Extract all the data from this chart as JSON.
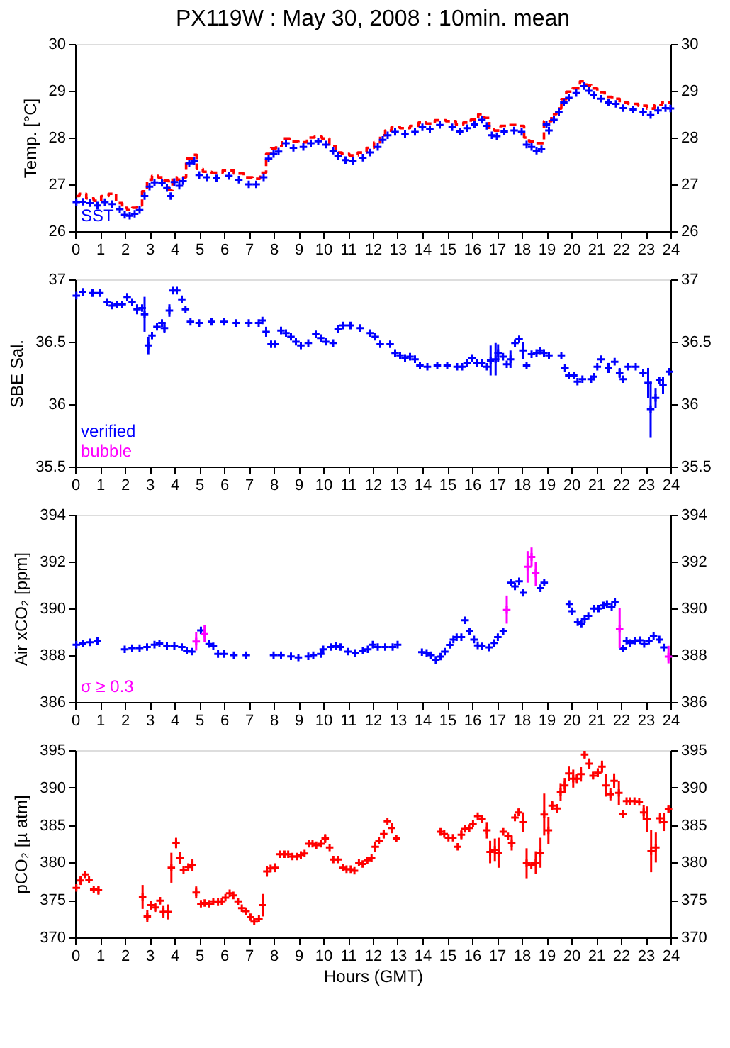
{
  "chart_data": [
    {
      "type": "scatter",
      "title": "PX119W : May 30, 2008 : 10min. mean",
      "ylabel": "Temp. [°C]",
      "xlim": [
        0,
        24
      ],
      "xticks": [
        0,
        1,
        2,
        3,
        4,
        5,
        6,
        7,
        8,
        9,
        10,
        11,
        12,
        13,
        14,
        15,
        16,
        17,
        18,
        19,
        20,
        21,
        22,
        23,
        24
      ],
      "ylim": [
        26,
        30
      ],
      "yticks": [
        26,
        27,
        28,
        29,
        30
      ],
      "y2lim": [
        26,
        30
      ],
      "y2ticks": [
        26,
        27,
        28,
        29,
        30
      ],
      "marker": "cross",
      "legend": "bottom left",
      "grid": false,
      "x": [
        0.05,
        0.3,
        0.6,
        0.9,
        1.2,
        1.5,
        1.8,
        2.0,
        2.2,
        2.4,
        2.6,
        2.8,
        3.0,
        3.2,
        3.5,
        3.7,
        3.85,
        4.0,
        4.2,
        4.35,
        4.6,
        4.8,
        5.0,
        5.3,
        5.7,
        6.2,
        6.6,
        7.0,
        7.3,
        7.6,
        7.8,
        8.0,
        8.2,
        8.5,
        8.8,
        9.2,
        9.5,
        9.8,
        10.1,
        10.4,
        10.6,
        10.9,
        11.2,
        11.6,
        11.9,
        12.2,
        12.4,
        12.6,
        12.9,
        13.3,
        13.7,
        14.0,
        14.3,
        14.7,
        15.2,
        15.5,
        15.8,
        16.1,
        16.4,
        16.6,
        16.8,
        17.0,
        17.3,
        17.7,
        18.0,
        18.2,
        18.4,
        18.6,
        18.8,
        19.0,
        19.1,
        19.3,
        19.5,
        19.7,
        19.9,
        20.2,
        20.5,
        20.7,
        20.9,
        21.2,
        21.5,
        21.8,
        22.1,
        22.5,
        22.9,
        23.2,
        23.5,
        23.8,
        24.0
      ],
      "series": [
        {
          "color": "#ff0000",
          "type": "step",
          "line_style": "dashed",
          "marker": "none",
          "values": [
            26.75,
            26.8,
            26.7,
            26.65,
            26.75,
            26.8,
            26.6,
            26.5,
            26.45,
            26.5,
            26.55,
            26.85,
            27.1,
            27.18,
            27.15,
            27.08,
            26.88,
            27.15,
            27.1,
            27.15,
            27.55,
            27.63,
            27.33,
            27.27,
            27.25,
            27.3,
            27.23,
            27.15,
            27.12,
            27.25,
            27.65,
            27.77,
            27.82,
            27.98,
            27.92,
            27.9,
            28.0,
            28.02,
            27.98,
            27.82,
            27.68,
            27.65,
            27.62,
            27.68,
            27.78,
            27.9,
            28.05,
            28.15,
            28.22,
            28.2,
            28.25,
            28.32,
            28.3,
            28.37,
            28.35,
            28.28,
            28.32,
            28.38,
            28.5,
            28.42,
            28.17,
            28.15,
            28.25,
            28.27,
            28.25,
            28.0,
            27.92,
            27.88,
            27.88,
            28.35,
            28.35,
            28.5,
            28.62,
            28.82,
            28.98,
            29.05,
            29.2,
            29.12,
            29.05,
            28.97,
            28.87,
            28.83,
            28.75,
            28.72,
            28.68,
            28.62,
            28.7,
            28.75,
            28.75
          ]
        },
        {
          "name": "SST",
          "color": "#0000ff",
          "values": [
            26.62,
            26.63,
            26.6,
            26.55,
            26.62,
            26.58,
            26.47,
            26.35,
            26.33,
            26.37,
            26.45,
            26.75,
            26.95,
            27.04,
            27.03,
            26.92,
            26.75,
            27.05,
            26.97,
            27.07,
            27.45,
            27.5,
            27.2,
            27.15,
            27.13,
            27.18,
            27.1,
            27.0,
            27.0,
            27.15,
            27.55,
            27.65,
            27.7,
            27.88,
            27.78,
            27.8,
            27.88,
            27.92,
            27.85,
            27.72,
            27.6,
            27.52,
            27.5,
            27.57,
            27.68,
            27.8,
            27.95,
            28.05,
            28.12,
            28.08,
            28.12,
            28.22,
            28.18,
            28.27,
            28.22,
            28.13,
            28.2,
            28.28,
            28.38,
            28.25,
            28.05,
            28.03,
            28.13,
            28.15,
            28.12,
            27.85,
            27.8,
            27.72,
            27.75,
            28.28,
            28.15,
            28.38,
            28.55,
            28.75,
            28.85,
            28.95,
            29.1,
            29.0,
            28.9,
            28.83,
            28.75,
            28.72,
            28.63,
            28.6,
            28.55,
            28.48,
            28.58,
            28.63,
            28.62
          ]
        }
      ]
    },
    {
      "type": "scatter",
      "ylabel": "SBE Sal.",
      "xlim": [
        0,
        24
      ],
      "xticks": [
        0,
        1,
        2,
        3,
        4,
        5,
        6,
        7,
        8,
        9,
        10,
        11,
        12,
        13,
        14,
        15,
        16,
        17,
        18,
        19,
        20,
        21,
        22,
        23,
        24
      ],
      "ylim": [
        35.5,
        37
      ],
      "yticks": [
        35.5,
        36,
        36.5,
        37
      ],
      "y2lim": [
        35.5,
        37
      ],
      "y2ticks": [
        35.5,
        36,
        36.5,
        37
      ],
      "marker": "cross",
      "legend": "bottom left",
      "grid": false,
      "x": [
        0.05,
        0.3,
        0.7,
        1.0,
        1.3,
        1.5,
        1.7,
        1.9,
        2.1,
        2.3,
        2.5,
        2.7,
        2.8,
        2.95,
        3.1,
        3.3,
        3.5,
        3.6,
        3.8,
        3.95,
        4.1,
        4.3,
        4.45,
        4.65,
        5.0,
        5.5,
        6.0,
        6.5,
        7.0,
        7.4,
        7.55,
        7.7,
        7.9,
        8.05,
        8.3,
        8.5,
        8.7,
        8.9,
        9.1,
        9.4,
        9.7,
        9.9,
        10.1,
        10.4,
        10.6,
        10.8,
        11.1,
        11.5,
        11.9,
        12.1,
        12.3,
        12.7,
        12.9,
        13.1,
        13.3,
        13.5,
        13.7,
        13.9,
        14.2,
        14.6,
        15.0,
        15.4,
        15.6,
        15.8,
        16.0,
        16.2,
        16.4,
        16.6,
        16.75,
        16.95,
        17.05,
        17.25,
        17.4,
        17.55,
        17.73,
        17.9,
        18.05,
        18.2,
        18.4,
        18.6,
        18.75,
        18.9,
        19.1,
        19.6,
        19.75,
        19.9,
        20.1,
        20.25,
        20.45,
        20.8,
        20.9,
        21.05,
        21.2,
        21.5,
        21.75,
        21.95,
        22.1,
        22.3,
        22.6,
        22.9,
        23.1,
        23.2,
        23.4,
        23.55,
        23.7,
        23.95
      ],
      "series": [
        {
          "name": "verified",
          "color": "#0000ff",
          "values": [
            36.87,
            36.9,
            36.89,
            36.89,
            36.82,
            36.79,
            36.8,
            36.8,
            36.86,
            36.82,
            36.76,
            36.77,
            36.72,
            36.47,
            36.55,
            36.62,
            36.65,
            36.61,
            36.75,
            36.91,
            36.91,
            36.84,
            36.76,
            36.66,
            36.65,
            36.66,
            36.66,
            36.65,
            36.65,
            36.65,
            36.67,
            36.58,
            36.48,
            36.48,
            36.59,
            36.57,
            36.54,
            36.5,
            36.47,
            36.49,
            36.56,
            36.53,
            36.5,
            36.49,
            36.6,
            36.63,
            36.63,
            36.61,
            36.57,
            36.54,
            36.48,
            36.48,
            36.41,
            36.39,
            36.37,
            36.38,
            36.36,
            36.31,
            36.3,
            36.31,
            36.31,
            36.3,
            36.3,
            36.33,
            36.37,
            36.33,
            36.33,
            36.3,
            36.35,
            36.36,
            36.41,
            36.38,
            36.32,
            36.36,
            36.49,
            36.52,
            36.43,
            36.31,
            36.4,
            36.41,
            36.43,
            36.41,
            36.39,
            36.39,
            36.29,
            36.23,
            36.23,
            36.18,
            36.2,
            36.2,
            36.22,
            36.3,
            36.36,
            36.29,
            36.34,
            36.25,
            36.2,
            36.3,
            36.3,
            36.25,
            36.17,
            35.96,
            36.05,
            36.19,
            36.15,
            36.26
          ],
          "errors": [
            null,
            null,
            null,
            null,
            null,
            null,
            null,
            null,
            null,
            null,
            0.04,
            null,
            0.14,
            0.07,
            null,
            null,
            null,
            0.04,
            0.05,
            null,
            null,
            null,
            null,
            null,
            null,
            null,
            null,
            null,
            null,
            null,
            null,
            0.04,
            null,
            null,
            null,
            null,
            null,
            null,
            null,
            null,
            null,
            null,
            null,
            null,
            null,
            null,
            null,
            null,
            null,
            null,
            null,
            null,
            null,
            null,
            null,
            null,
            null,
            null,
            null,
            null,
            null,
            null,
            null,
            null,
            null,
            null,
            null,
            null,
            0.12,
            0.13,
            0.07,
            null,
            null,
            0.07,
            null,
            null,
            0.07,
            null,
            null,
            null,
            null,
            null,
            null,
            null,
            null,
            null,
            null,
            null,
            null,
            null,
            null,
            null,
            null,
            0.04,
            null,
            0.04,
            null,
            null,
            null,
            null,
            0.12,
            [
              35.73,
              36.18
            ],
            0.08,
            null,
            0.07,
            null
          ]
        },
        {
          "name": "bubble",
          "color": "#ff00ff",
          "values": [
            null,
            null,
            null,
            null,
            null,
            null,
            null,
            null,
            null,
            null,
            null,
            null,
            null,
            null,
            null,
            null,
            null,
            null,
            null,
            null,
            null,
            null,
            null,
            null,
            null,
            null,
            null,
            null,
            null,
            null,
            null,
            null,
            null,
            null,
            null,
            null,
            null,
            null,
            null,
            null,
            null,
            null,
            null,
            null,
            null,
            null,
            null,
            null,
            null,
            null,
            null,
            null,
            null,
            null,
            null,
            null,
            null,
            null,
            null,
            null,
            null,
            null,
            null,
            null,
            null,
            null,
            null,
            null,
            null,
            null,
            null,
            null,
            null,
            null,
            null,
            null,
            null,
            null,
            null,
            null,
            null,
            null,
            null,
            null,
            null,
            null,
            null,
            null,
            null,
            null,
            null,
            null,
            null,
            null,
            null,
            null,
            null,
            null,
            null,
            null,
            null,
            null,
            null,
            null,
            null,
            null
          ]
        }
      ]
    },
    {
      "type": "scatter",
      "ylabel": "Air xCO₂ [ppm]",
      "xlim": [
        0,
        24
      ],
      "xticks": [
        0,
        1,
        2,
        3,
        4,
        5,
        6,
        7,
        8,
        9,
        10,
        11,
        12,
        13,
        14,
        15,
        16,
        17,
        18,
        19,
        20,
        21,
        22,
        23,
        24
      ],
      "ylim": [
        386,
        394
      ],
      "yticks": [
        386,
        388,
        390,
        392,
        394
      ],
      "y2lim": [
        386,
        394
      ],
      "y2ticks": [
        386,
        388,
        390,
        392,
        394
      ],
      "marker": "cross",
      "legend": "bottom left",
      "grid": false,
      "series": [
        {
          "color": "#0000ff",
          "x": [
            0.05,
            0.3,
            0.6,
            0.9,
            2.0,
            2.3,
            2.6,
            2.9,
            3.2,
            3.4,
            3.7,
            4.0,
            4.3,
            4.5,
            4.7,
            5.07,
            5.4,
            5.57,
            5.76,
            6.0,
            6.4,
            6.9,
            8.0,
            8.3,
            8.7,
            9.0,
            9.4,
            9.6,
            9.9,
            10.0,
            10.3,
            10.5,
            10.7,
            11.0,
            11.3,
            11.6,
            11.8,
            12.0,
            12.2,
            12.5,
            12.8,
            13.0,
            13.98,
            14.17,
            14.35,
            14.54,
            14.73,
            14.9,
            15.1,
            15.25,
            15.38,
            15.57,
            15.72,
            15.9,
            16.08,
            16.23,
            16.4,
            16.7,
            16.9,
            17.04,
            17.26,
            17.58,
            17.73,
            17.9,
            18.07,
            18.76,
            18.91,
            19.92,
            20.04,
            20.26,
            20.41,
            20.54,
            20.69,
            20.92,
            21.1,
            21.3,
            21.44,
            21.63,
            21.76,
            22.1,
            22.23,
            22.38,
            22.57,
            22.76,
            22.94,
            23.13,
            23.32,
            23.55,
            23.73
          ],
          "values": [
            388.45,
            388.5,
            388.55,
            388.6,
            388.25,
            388.3,
            388.3,
            388.35,
            388.45,
            388.5,
            388.4,
            388.4,
            388.35,
            388.2,
            388.15,
            389.06,
            388.48,
            388.38,
            388.05,
            388.05,
            388.0,
            388.0,
            388.0,
            388.0,
            387.95,
            387.9,
            387.95,
            388.0,
            388.05,
            388.25,
            388.35,
            388.4,
            388.35,
            388.15,
            388.1,
            388.2,
            388.25,
            388.45,
            388.35,
            388.35,
            388.35,
            388.45,
            388.13,
            388.1,
            388.0,
            387.8,
            387.94,
            388.15,
            388.44,
            388.67,
            388.77,
            388.77,
            389.49,
            389.02,
            388.67,
            388.42,
            388.38,
            388.33,
            388.52,
            388.77,
            389.02,
            391.1,
            390.94,
            391.16,
            390.67,
            390.86,
            391.1,
            390.19,
            389.88,
            389.41,
            389.35,
            389.55,
            389.68,
            389.99,
            389.99,
            390.13,
            390.19,
            390.07,
            390.28,
            388.29,
            388.62,
            388.52,
            388.62,
            388.64,
            388.48,
            388.62,
            388.83,
            388.67,
            388.33
          ]
        },
        {
          "name": "σ ≥ 0.3",
          "color": "#ff00ff",
          "x": [
            4.88,
            5.22,
            17.4,
            18.24,
            18.4,
            18.57,
            21.95,
            23.92
          ],
          "values": [
            388.58,
            388.9,
            389.93,
            391.78,
            392.2,
            391.5,
            389.12,
            387.94
          ],
          "errors": [
            [
              388.2,
              389.0
            ],
            [
              388.55,
              389.3
            ],
            [
              389.35,
              390.55
            ],
            [
              391.1,
              392.45
            ],
            [
              391.8,
              392.6
            ],
            [
              390.95,
              392.0
            ],
            [
              388.3,
              390.0
            ],
            [
              387.65,
              388.4
            ]
          ]
        }
      ]
    },
    {
      "type": "scatter",
      "ylabel": "pCO₂ [µ atm]",
      "xlabel": "Hours (GMT)",
      "xlim": [
        0,
        24
      ],
      "xticks": [
        0,
        1,
        2,
        3,
        4,
        5,
        6,
        7,
        8,
        9,
        10,
        11,
        12,
        13,
        14,
        15,
        16,
        17,
        18,
        19,
        20,
        21,
        22,
        23,
        24
      ],
      "ylim": [
        370,
        395
      ],
      "yticks": [
        370,
        375,
        380,
        385,
        390,
        395
      ],
      "y2lim": [
        370,
        395
      ],
      "y2ticks": [
        370,
        375,
        380,
        385,
        390,
        395
      ],
      "marker": "cross",
      "grid": false,
      "x": [
        0.05,
        0.22,
        0.41,
        0.56,
        0.75,
        0.94,
        2.72,
        2.91,
        3.06,
        3.23,
        3.42,
        3.56,
        3.75,
        3.88,
        4.07,
        4.22,
        4.37,
        4.56,
        4.73,
        4.88,
        5.07,
        5.22,
        5.4,
        5.57,
        5.76,
        5.91,
        6.06,
        6.23,
        6.38,
        6.57,
        6.72,
        6.89,
        7.07,
        7.22,
        7.41,
        7.56,
        7.73,
        7.88,
        8.07,
        8.26,
        8.44,
        8.59,
        8.76,
        8.95,
        9.1,
        9.25,
        9.42,
        9.57,
        9.72,
        9.91,
        10.08,
        10.26,
        10.41,
        10.6,
        10.79,
        10.94,
        11.11,
        11.26,
        11.44,
        11.59,
        11.78,
        11.95,
        12.1,
        12.25,
        12.44,
        12.59,
        12.76,
        12.95,
        14.73,
        14.88,
        15.05,
        15.23,
        15.42,
        15.57,
        15.72,
        15.89,
        16.04,
        16.23,
        16.41,
        16.6,
        16.73,
        16.92,
        17.07,
        17.26,
        17.45,
        17.6,
        17.73,
        17.88,
        18.05,
        18.2,
        18.39,
        18.57,
        18.76,
        18.91,
        19.08,
        19.23,
        19.42,
        19.57,
        19.74,
        19.9,
        20.08,
        20.23,
        20.39,
        20.54,
        20.73,
        20.88,
        21.07,
        21.24,
        21.39,
        21.58,
        21.73,
        21.92,
        22.08,
        22.23,
        22.38,
        22.55,
        22.74,
        22.92,
        23.07,
        23.22,
        23.41,
        23.58,
        23.73,
        23.92
      ],
      "series": [
        {
          "color": "#ff0000",
          "values": [
            376.6,
            377.6,
            378.4,
            377.7,
            376.4,
            376.3,
            375.4,
            372.8,
            374.3,
            374.0,
            374.9,
            373.4,
            373.4,
            379.3,
            382.6,
            380.6,
            379.0,
            379.4,
            379.7,
            376.0,
            374.5,
            374.6,
            374.5,
            374.8,
            374.7,
            374.8,
            375.3,
            375.9,
            375.6,
            374.8,
            373.9,
            373.5,
            372.7,
            372.1,
            372.5,
            374.3,
            378.8,
            379.2,
            379.3,
            381.1,
            381.1,
            381.1,
            380.8,
            380.8,
            381.0,
            381.2,
            382.5,
            382.5,
            382.3,
            382.5,
            383.2,
            382.0,
            380.4,
            380.4,
            379.3,
            379.1,
            379.1,
            378.9,
            380.0,
            379.8,
            380.3,
            380.6,
            382.1,
            382.9,
            383.8,
            385.5,
            384.6,
            383.2,
            384.1,
            383.8,
            383.3,
            383.3,
            382.1,
            383.7,
            384.5,
            384.6,
            385.2,
            386.2,
            385.8,
            384.3,
            381.4,
            381.7,
            381.3,
            384.1,
            383.5,
            382.6,
            386.0,
            386.7,
            385.4,
            379.9,
            379.6,
            380.0,
            381.3,
            386.4,
            384.3,
            387.6,
            387.2,
            389.4,
            390.3,
            391.9,
            391.2,
            391.2,
            391.8,
            394.4,
            393.2,
            391.6,
            392.0,
            392.8,
            390.3,
            389.1,
            390.9,
            389.3,
            386.5,
            388.2,
            388.2,
            388.2,
            388.1,
            386.7,
            385.8,
            381.5,
            382.0,
            385.9,
            385.4,
            387.1
          ],
          "errors": [
            null,
            0.6,
            null,
            null,
            null,
            0.6,
            1.6,
            0.8,
            0.6,
            0.6,
            0.5,
            0.8,
            1.0,
            2.0,
            0.7,
            0.8,
            null,
            null,
            0.8,
            0.8,
            null,
            null,
            null,
            null,
            null,
            null,
            null,
            null,
            null,
            null,
            null,
            null,
            null,
            null,
            null,
            1.5,
            0.7,
            null,
            0.6,
            null,
            null,
            null,
            null,
            null,
            null,
            null,
            null,
            null,
            null,
            null,
            0.6,
            null,
            null,
            null,
            null,
            null,
            null,
            null,
            null,
            null,
            null,
            null,
            0.7,
            null,
            0.6,
            null,
            0.7,
            null,
            null,
            null,
            null,
            null,
            null,
            0.6,
            null,
            null,
            null,
            null,
            null,
            1.1,
            1.5,
            1.5,
            2,
            null,
            null,
            1,
            null,
            0.5,
            1.3,
            2,
            null,
            1.5,
            2,
            2.8,
            1.8,
            0.6,
            0.6,
            1.2,
            1,
            1,
            1.2,
            0.6,
            1,
            0.5,
            0.7,
            0.5,
            0.6,
            0.8,
            1.5,
            0.8,
            1,
            1.6,
            0.5,
            null,
            null,
            null,
            null,
            1,
            1.7,
            2.8,
            2,
            0.7,
            1.2,
            0.5
          ]
        }
      ]
    }
  ]
}
